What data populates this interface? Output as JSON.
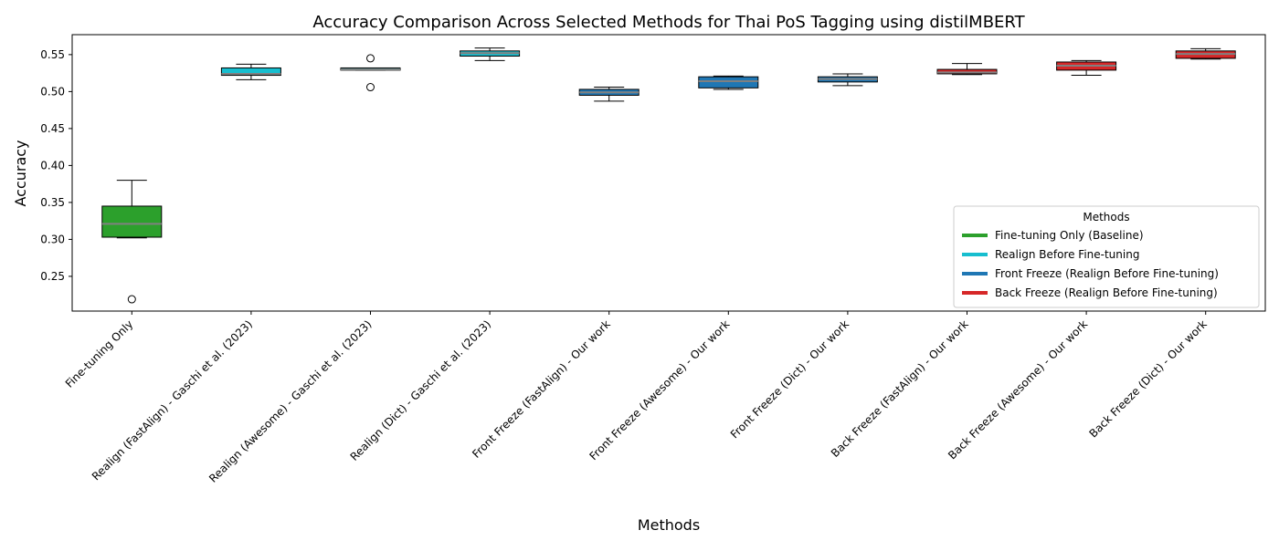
{
  "chart_data": {
    "type": "boxplot",
    "title": "Accuracy Comparison Across Selected Methods for Thai PoS Tagging using distilMBERT",
    "xlabel": "Methods",
    "ylabel": "Accuracy",
    "ylim": [
      0.203,
      0.577
    ],
    "yticks": [
      0.25,
      0.3,
      0.35,
      0.4,
      0.45,
      0.5,
      0.55
    ],
    "ytick_labels": [
      "0.25",
      "0.30",
      "0.35",
      "0.40",
      "0.45",
      "0.50",
      "0.55"
    ],
    "grid": false,
    "legend": {
      "title": "Methods",
      "placement": "lower-right",
      "entries": [
        {
          "label": "Fine-tuning Only (Baseline)",
          "color": "#2ca02c"
        },
        {
          "label": "Realign Before Fine-tuning",
          "color": "#17becf"
        },
        {
          "label": "Front Freeze (Realign Before Fine-tuning)",
          "color": "#1f77b4"
        },
        {
          "label": "Back Freeze (Realign Before Fine-tuning)",
          "color": "#d62728"
        }
      ]
    },
    "boxes": [
      {
        "label": "Fine-tuning Only",
        "color": "#2ca02c",
        "whislo": 0.302,
        "q1": 0.303,
        "median": 0.321,
        "q3": 0.345,
        "whishi": 0.38,
        "fliers": [
          0.219
        ]
      },
      {
        "label": "Realign (FastAlign) - Gaschi et al. (2023)",
        "color": "#17becf",
        "whislo": 0.516,
        "q1": 0.522,
        "median": 0.524,
        "q3": 0.532,
        "whishi": 0.537,
        "fliers": []
      },
      {
        "label": "Realign (Awesome) - Gaschi et al. (2023)",
        "color": "#17becf",
        "whislo": 0.529,
        "q1": 0.529,
        "median": 0.53,
        "q3": 0.532,
        "whishi": 0.532,
        "fliers": [
          0.545,
          0.506
        ]
      },
      {
        "label": "Realign (Dict) - Gaschi et al. (2023)",
        "color": "#17becf",
        "whislo": 0.542,
        "q1": 0.548,
        "median": 0.552,
        "q3": 0.555,
        "whishi": 0.559,
        "fliers": []
      },
      {
        "label": "Front Freeze (FastAlign) - Our work",
        "color": "#1f77b4",
        "whislo": 0.487,
        "q1": 0.495,
        "median": 0.499,
        "q3": 0.503,
        "whishi": 0.506,
        "fliers": []
      },
      {
        "label": "Front Freeze (Awesome) - Our work",
        "color": "#1f77b4",
        "whislo": 0.503,
        "q1": 0.505,
        "median": 0.514,
        "q3": 0.52,
        "whishi": 0.521,
        "fliers": []
      },
      {
        "label": "Front Freeze (Dict) - Our work",
        "color": "#1f77b4",
        "whislo": 0.508,
        "q1": 0.513,
        "median": 0.517,
        "q3": 0.52,
        "whishi": 0.524,
        "fliers": []
      },
      {
        "label": "Back Freeze (FastAlign) - Our work",
        "color": "#d62728",
        "whislo": 0.523,
        "q1": 0.524,
        "median": 0.526,
        "q3": 0.53,
        "whishi": 0.538,
        "fliers": []
      },
      {
        "label": "Back Freeze (Awesome) - Our work",
        "color": "#d62728",
        "whislo": 0.522,
        "q1": 0.529,
        "median": 0.535,
        "q3": 0.54,
        "whishi": 0.542,
        "fliers": []
      },
      {
        "label": "Back Freeze (Dict) - Our work",
        "color": "#d62728",
        "whislo": 0.544,
        "q1": 0.545,
        "median": 0.551,
        "q3": 0.555,
        "whishi": 0.558,
        "fliers": []
      }
    ]
  }
}
